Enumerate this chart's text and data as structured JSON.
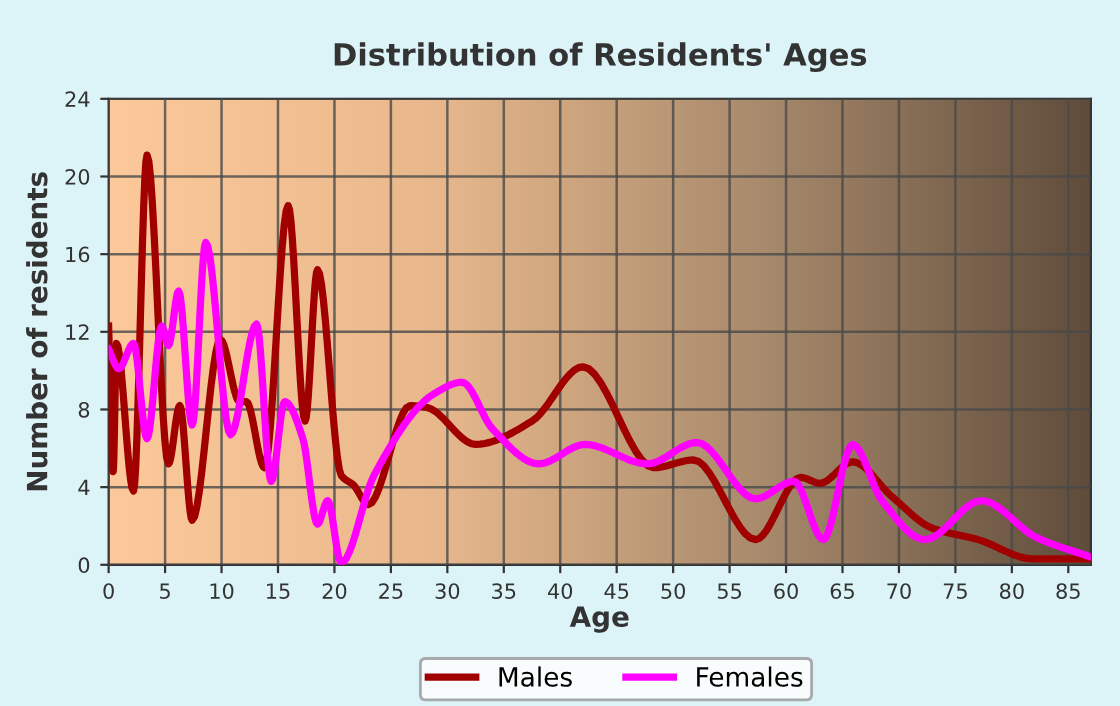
{
  "chart_data": {
    "type": "line",
    "title": "Distribution of Residents' Ages",
    "xlabel": "Age",
    "ylabel": "Number of residents",
    "xlim": [
      0,
      87
    ],
    "ylim": [
      0,
      24
    ],
    "xticks": [
      0,
      5,
      10,
      15,
      20,
      25,
      30,
      35,
      40,
      45,
      50,
      55,
      60,
      65,
      70,
      75,
      80,
      85
    ],
    "yticks": [
      0,
      4,
      8,
      12,
      16,
      20,
      24
    ],
    "grid": true,
    "legend": "bottom",
    "series": [
      {
        "name": "Males",
        "color": "#a00000",
        "x": [
          0,
          0.4,
          0.7,
          2.2,
          3.4,
          5.3,
          6.3,
          7.4,
          9.9,
          11.6,
          12.2,
          13.8,
          15.9,
          17.4,
          18.5,
          20.6,
          21.7,
          23,
          26.7,
          28.2,
          32.5,
          37.5,
          42,
          48.3,
          51.8,
          57.3,
          61.3,
          63,
          65.9,
          69.4,
          72.9,
          77,
          81.9,
          87
        ],
        "values": [
          12.3,
          4.8,
          11.4,
          3.8,
          21.1,
          5.2,
          8.2,
          2.3,
          11.6,
          8.4,
          8.4,
          5.0,
          18.5,
          7.4,
          15.2,
          4.6,
          4.1,
          3.1,
          8.2,
          8.1,
          6.2,
          7.4,
          10.2,
          5.0,
          5.4,
          1.3,
          4.5,
          4.2,
          5.3,
          3.5,
          1.9,
          1.3,
          0.3,
          0.3
        ]
      },
      {
        "name": "Females",
        "color": "#ff00ff",
        "x": [
          0,
          0.9,
          2.2,
          3.4,
          4.7,
          5.3,
          6.2,
          7.4,
          8.6,
          10.8,
          13.1,
          14.4,
          15.6,
          17.2,
          18.5,
          19.4,
          20.6,
          23.5,
          28.8,
          31.3,
          34,
          38.1,
          42.2,
          47.7,
          52.1,
          57.3,
          60.7,
          63.3,
          65.9,
          68.5,
          72.3,
          77.3,
          82.2,
          87
        ],
        "values": [
          11.1,
          10.1,
          11.4,
          6.5,
          12.3,
          11.3,
          14.1,
          7.2,
          16.6,
          6.7,
          12.4,
          4.3,
          8.4,
          6.5,
          2.1,
          3.3,
          0.1,
          4.6,
          8.8,
          9.4,
          7.0,
          5.2,
          6.2,
          5.2,
          6.3,
          3.4,
          4.3,
          1.3,
          6.2,
          3.3,
          1.3,
          3.3,
          1.4,
          0.4
        ]
      }
    ]
  }
}
